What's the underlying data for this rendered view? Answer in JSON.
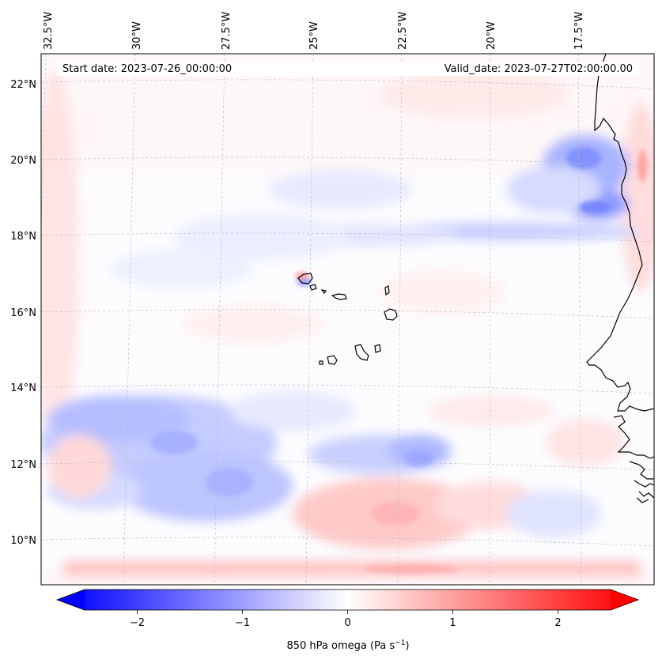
{
  "map": {
    "start_label": "Start date: 2023-07-26_00:00:00",
    "valid_label": "Valid_date: 2023-07-27T02:00:00.00",
    "lon_labels": [
      "32.5°W",
      "30°W",
      "27.5°W",
      "25°W",
      "22.5°W",
      "20°W",
      "17.5°W"
    ],
    "lat_labels": [
      "22°N",
      "20°N",
      "18°N",
      "16°N",
      "14°N",
      "12°N",
      "10°N"
    ],
    "field": "850 hPa omega",
    "colorbar": {
      "ticks": [
        "−2",
        "−1",
        "0",
        "1",
        "2"
      ],
      "tick_values": [
        -2,
        -1,
        0,
        1,
        2
      ],
      "range": [
        -2.5,
        2.5
      ],
      "label_main": "850 hPa omega (Pa s",
      "label_sup": "−1",
      "label_end": ")",
      "extend": "both",
      "colormap": "bwr",
      "min_color": "#0000ff",
      "mid_color": "#ffffff",
      "max_color": "#ff0000"
    },
    "coastline_color": "#000000",
    "gridline_color": "#b8b8b8"
  }
}
